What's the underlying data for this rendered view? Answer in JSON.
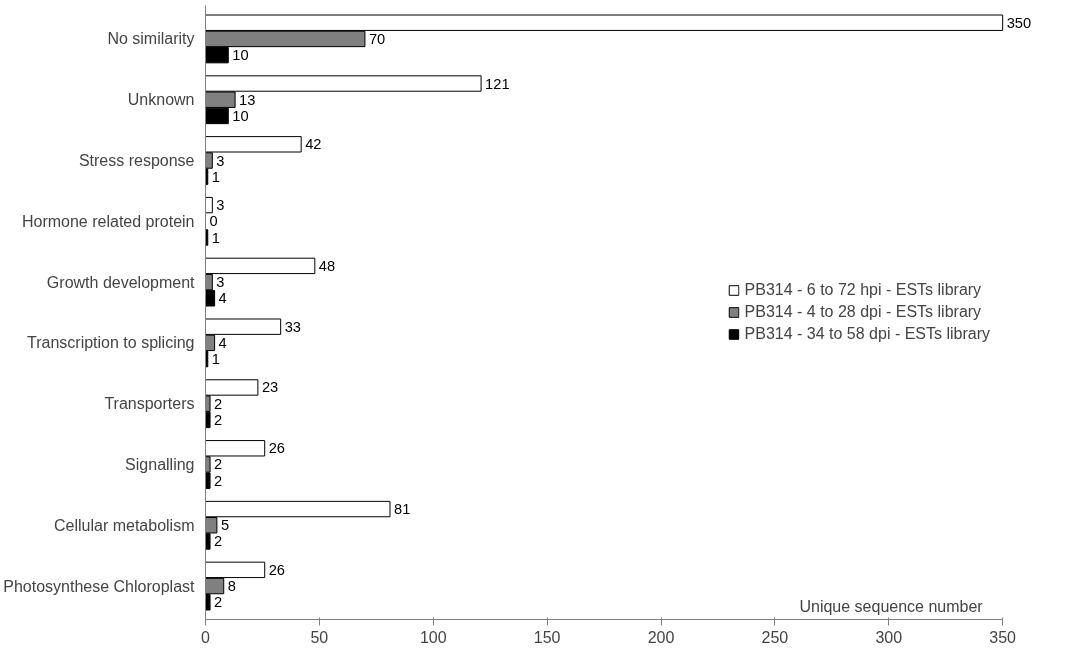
{
  "chart_data": {
    "type": "bar",
    "orientation": "horizontal",
    "categories": [
      "No similarity",
      "Unknown",
      "Stress response",
      "Hormone related protein",
      "Growth development",
      "Transcription to splicing",
      "Transporters",
      "Signalling",
      "Cellular metabolism",
      "Photosynthese Chloroplast"
    ],
    "series": [
      {
        "name": "PB314 - 6 to 72 hpi - ESTs library",
        "color": "#ffffff",
        "values": [
          350,
          121,
          42,
          3,
          48,
          33,
          23,
          26,
          81,
          26
        ]
      },
      {
        "name": "PB314 - 4 to 28 dpi - ESTs library",
        "color": "#808080",
        "values": [
          70,
          13,
          3,
          0,
          3,
          4,
          2,
          2,
          5,
          8
        ]
      },
      {
        "name": "PB314 - 34 to 58 dpi - ESTs library",
        "color": "#000000",
        "values": [
          10,
          10,
          1,
          1,
          4,
          1,
          2,
          2,
          2,
          2
        ]
      }
    ],
    "xlabel": "Unique sequence number",
    "xlim": [
      0,
      350
    ],
    "xticks": [
      0,
      50,
      100,
      150,
      200,
      250,
      300,
      350
    ],
    "data_labels": true,
    "legend": "right",
    "grid": false
  }
}
